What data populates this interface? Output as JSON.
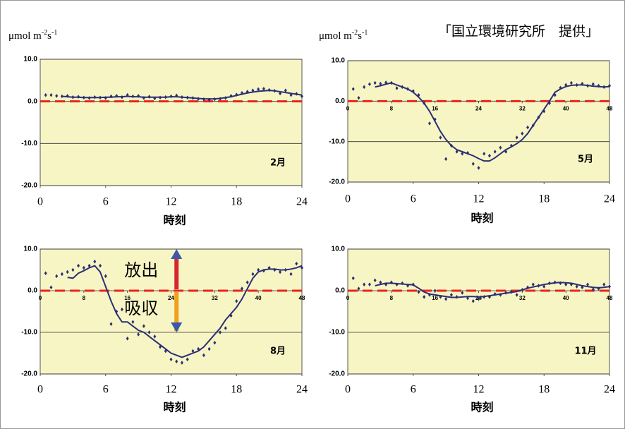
{
  "credit": "「国立環境研究所　提供」",
  "chart_data": [
    {
      "type": "line",
      "annotation": "2月",
      "xlabel": "時刻",
      "ylabel_parts": [
        "μmol m",
        "-2",
        "s",
        "-1"
      ],
      "xlim": [
        0,
        24
      ],
      "xticks": [
        0,
        6,
        12,
        18,
        24
      ],
      "ylim": [
        -20,
        10
      ],
      "yticks": [
        {
          "value": 10,
          "label": "10.0"
        },
        {
          "value": 0,
          "label": "0.0"
        },
        {
          "value": -10,
          "label": "-10.0"
        },
        {
          "value": -20,
          "label": "-20.0"
        }
      ],
      "grid": true,
      "zero_line": {
        "value": 0,
        "color": "#e8261e"
      },
      "x": [
        0.5,
        1,
        1.5,
        2,
        2.5,
        3,
        3.5,
        4,
        4.5,
        5,
        5.5,
        6,
        6.5,
        7,
        7.5,
        8,
        8.5,
        9,
        9.5,
        10,
        10.5,
        11,
        11.5,
        12,
        12.5,
        13,
        13.5,
        14,
        14.5,
        15,
        15.5,
        16,
        16.5,
        17,
        17.5,
        18,
        18.5,
        19,
        19.5,
        20,
        20.5,
        21,
        21.5,
        22,
        22.5,
        23,
        23.5,
        24
      ],
      "series": [
        {
          "style": "dots",
          "color": "#2b2f73",
          "values": [
            1.5,
            1.5,
            1.3,
            1.2,
            1.3,
            1.0,
            1.1,
            0.9,
            0.8,
            1.0,
            0.9,
            0.8,
            1.2,
            1.3,
            1.0,
            1.5,
            1.2,
            1.3,
            0.8,
            1.1,
            0.7,
            0.9,
            1.0,
            1.2,
            1.4,
            1.0,
            0.9,
            0.8,
            0.6,
            0.5,
            0.4,
            0.5,
            0.6,
            0.8,
            1.3,
            1.6,
            2.0,
            2.3,
            2.6,
            2.9,
            3.0,
            2.7,
            2.5,
            1.9,
            2.6,
            1.5,
            1.8,
            1.2
          ]
        },
        {
          "style": "line",
          "color": "#2b2f73",
          "values": [
            null,
            null,
            null,
            1.2,
            1.1,
            1.0,
            1.0,
            0.9,
            0.9,
            0.9,
            0.9,
            1.0,
            1.0,
            1.1,
            1.1,
            1.2,
            1.1,
            1.1,
            1.0,
            1.0,
            1.0,
            1.0,
            1.0,
            1.1,
            1.1,
            1.0,
            0.9,
            0.8,
            0.7,
            0.6,
            0.6,
            0.6,
            0.7,
            0.9,
            1.1,
            1.4,
            1.7,
            2.0,
            2.2,
            2.4,
            2.5,
            2.6,
            2.5,
            2.3,
            2.1,
            1.9,
            1.7,
            1.5
          ]
        }
      ]
    },
    {
      "type": "line",
      "annotation": "5月",
      "xlabel": "時刻",
      "ylabel_parts": [
        "μmol m",
        "-2",
        "s",
        "-1"
      ],
      "xlim": [
        0,
        24
      ],
      "xticks": [
        0,
        6,
        12,
        18,
        24
      ],
      "x2lim": [
        0,
        48
      ],
      "x2ticks": [
        0,
        8,
        16,
        24,
        32,
        40,
        48
      ],
      "ylim": [
        -20,
        10
      ],
      "yticks": [
        {
          "value": 10,
          "label": "10.0"
        },
        {
          "value": 0,
          "label": "0.0"
        },
        {
          "value": -10,
          "label": "-10.0"
        },
        {
          "value": -20,
          "label": "-20.0"
        }
      ],
      "grid": true,
      "zero_line": {
        "value": 0,
        "color": "#e8261e"
      },
      "x": [
        0.5,
        1,
        1.5,
        2,
        2.5,
        3,
        3.5,
        4,
        4.5,
        5,
        5.5,
        6,
        6.5,
        7,
        7.5,
        8,
        8.5,
        9,
        9.5,
        10,
        10.5,
        11,
        11.5,
        12,
        12.5,
        13,
        13.5,
        14,
        14.5,
        15,
        15.5,
        16,
        16.5,
        17,
        17.5,
        18,
        18.5,
        19,
        19.5,
        20,
        20.5,
        21,
        21.5,
        22,
        22.5,
        23,
        23.5,
        24
      ],
      "series": [
        {
          "style": "dots",
          "color": "#2b2f73",
          "values": [
            3.0,
            0.8,
            3.5,
            4.2,
            4.5,
            4.3,
            4.6,
            4.5,
            3.2,
            3.5,
            3.0,
            2.5,
            1.5,
            -0.5,
            -5.5,
            -4.5,
            -9,
            -14.3,
            -11,
            -12.5,
            -13,
            -12.8,
            -15.5,
            -16.5,
            -13,
            -13.5,
            -12.5,
            -11.5,
            -12.5,
            -11,
            -9,
            -8,
            -6.5,
            -6,
            -4,
            -2.5,
            -0.5,
            1.5,
            3.3,
            4.0,
            4.5,
            4.0,
            4.3,
            3.8,
            4.2,
            3.8,
            3.5,
            3.8
          ]
        },
        {
          "style": "line",
          "color": "#2b2f73",
          "values": [
            null,
            null,
            null,
            null,
            3.5,
            3.8,
            4.2,
            4.5,
            4.0,
            3.5,
            3.0,
            2.2,
            1.0,
            -0.5,
            -2.5,
            -5,
            -7.5,
            -9.5,
            -11,
            -12,
            -12.5,
            -13,
            -13.5,
            -14.2,
            -14.8,
            -14.8,
            -14,
            -13,
            -12,
            -11.3,
            -10.5,
            -9.5,
            -8,
            -6,
            -4,
            -2,
            0,
            2.2,
            3.0,
            3.6,
            3.9,
            4.0,
            4.0,
            3.9,
            3.7,
            3.6,
            3.5,
            3.6
          ]
        }
      ]
    },
    {
      "type": "line",
      "annotation": "8月",
      "xlabel": "時刻",
      "arrow_labels": [
        "放出",
        "吸収"
      ],
      "xlim": [
        0,
        24
      ],
      "xticks": [
        0,
        6,
        12,
        18,
        24
      ],
      "x2lim": [
        0,
        48
      ],
      "x2ticks": [
        0,
        8,
        16,
        24,
        32,
        40,
        48
      ],
      "ylim": [
        -20,
        10
      ],
      "yticks": [
        {
          "value": 10,
          "label": "10.0"
        },
        {
          "value": 0,
          "label": "0.0"
        },
        {
          "value": -10,
          "label": "-10.0"
        },
        {
          "value": -20,
          "label": "-20.0"
        }
      ],
      "grid": true,
      "zero_line": {
        "value": 0,
        "color": "#e8261e"
      },
      "x": [
        0.5,
        1,
        1.5,
        2,
        2.5,
        3,
        3.5,
        4,
        4.5,
        5,
        5.5,
        6,
        6.5,
        7,
        7.5,
        8,
        8.5,
        9,
        9.5,
        10,
        10.5,
        11,
        11.5,
        12,
        12.5,
        13,
        13.5,
        14,
        14.5,
        15,
        15.5,
        16,
        16.5,
        17,
        17.5,
        18,
        18.5,
        19,
        19.5,
        20,
        20.5,
        21,
        21.5,
        22,
        22.5,
        23,
        23.5,
        24
      ],
      "series": [
        {
          "style": "dots",
          "color": "#2b2f73",
          "values": [
            4.2,
            0.8,
            3.5,
            4.0,
            4.5,
            5.0,
            6.0,
            5.5,
            6.0,
            7.0,
            6.0,
            3.5,
            -8,
            -5,
            -4.5,
            -11.5,
            -7.5,
            -10.5,
            -8.5,
            -10,
            -11,
            -13.5,
            -14.5,
            -16.5,
            -17,
            -17.3,
            -16.5,
            -14.5,
            -14,
            -15.5,
            -14,
            -12.5,
            -10,
            -9,
            -6,
            -2.5,
            0.5,
            2.0,
            4.0,
            5.0,
            4.8,
            5.5,
            5.0,
            4.5,
            5.0,
            4.0,
            6.5,
            5.5
          ]
        },
        {
          "style": "line",
          "color": "#2b2f73",
          "values": [
            null,
            null,
            null,
            null,
            3.2,
            3.0,
            4.2,
            4.8,
            5.5,
            6.0,
            4.5,
            1.0,
            -2.5,
            -5.5,
            -7.5,
            -7.5,
            -8.5,
            -9.5,
            -10,
            -11,
            -12,
            -13,
            -14,
            -15,
            -15.5,
            -16,
            -15.5,
            -15,
            -14.5,
            -13.5,
            -12,
            -10.5,
            -9,
            -7,
            -5.5,
            -4,
            -2,
            0.5,
            3.0,
            4.5,
            5.0,
            5.2,
            5.2,
            5.0,
            5.0,
            5.2,
            5.5,
            6.0
          ]
        }
      ]
    },
    {
      "type": "line",
      "annotation": "11月",
      "xlabel": "時刻",
      "xlim": [
        0,
        24
      ],
      "xticks": [
        0,
        6,
        12,
        18,
        24
      ],
      "x2lim": [
        0,
        48
      ],
      "x2ticks": [
        0,
        8,
        16,
        24,
        32,
        40,
        48
      ],
      "ylim": [
        -20,
        10
      ],
      "yticks": [
        {
          "value": 10,
          "label": "10.0"
        },
        {
          "value": 0,
          "label": "0.0"
        },
        {
          "value": -10,
          "label": "-10.0"
        },
        {
          "value": -20,
          "label": "-20.0"
        }
      ],
      "grid": true,
      "zero_line": {
        "value": 0,
        "color": "#e8261e"
      },
      "x": [
        0.5,
        1,
        1.5,
        2,
        2.5,
        3,
        3.5,
        4,
        4.5,
        5,
        5.5,
        6,
        6.5,
        7,
        7.5,
        8,
        8.5,
        9,
        9.5,
        10,
        10.5,
        11,
        11.5,
        12,
        12.5,
        13,
        13.5,
        14,
        14.5,
        15,
        15.5,
        16,
        16.5,
        17,
        17.5,
        18,
        18.5,
        19,
        19.5,
        20,
        20.5,
        21,
        21.5,
        22,
        22.5,
        23,
        23.5,
        24
      ],
      "series": [
        {
          "style": "dots",
          "color": "#2b2f73",
          "values": [
            3.0,
            0.5,
            1.5,
            1.5,
            2.5,
            2.0,
            1.5,
            2.0,
            1.5,
            1.8,
            1.2,
            1.5,
            -0.3,
            -1.5,
            -1,
            0,
            -1.5,
            -2,
            -1,
            -1.5,
            -0.5,
            -1.8,
            -2.5,
            -2,
            -1.5,
            -1.5,
            -0.8,
            -1,
            -0.5,
            -0.3,
            -1,
            0.2,
            0.8,
            1.5,
            1.2,
            1.0,
            1.8,
            2.0,
            1.8,
            1.5,
            1.5,
            1.0,
            0.8,
            1.5,
            0.3,
            0.5,
            1.5,
            1.0
          ]
        },
        {
          "style": "line",
          "color": "#2b2f73",
          "values": [
            null,
            null,
            null,
            null,
            1.2,
            1.5,
            1.8,
            1.8,
            1.7,
            1.6,
            1.5,
            1.4,
            0.6,
            -0.3,
            -0.8,
            -1.0,
            -1.2,
            -1.4,
            -1.6,
            -1.6,
            -1.5,
            -1.4,
            -1.4,
            -1.5,
            -1.4,
            -1.2,
            -1.0,
            -0.8,
            -0.6,
            -0.4,
            -0.2,
            0.2,
            0.6,
            0.9,
            1.2,
            1.5,
            1.7,
            1.9,
            2.0,
            1.9,
            1.8,
            1.5,
            1.2,
            1.0,
            0.8,
            0.7,
            0.8,
            1.0
          ]
        }
      ]
    }
  ]
}
